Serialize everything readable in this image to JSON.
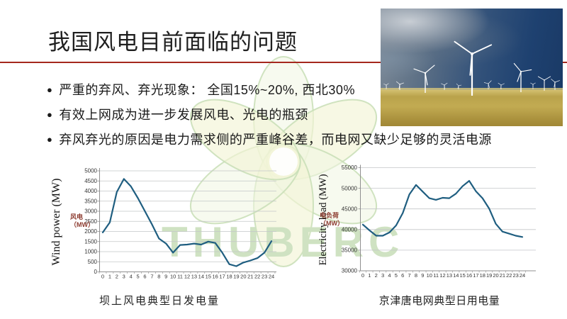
{
  "slide": {
    "title": "我国风电目前面临的问题",
    "accent_line_color": "#a5281e",
    "watermark_text": "THUBERC",
    "watermark_color": "#cfe2c2",
    "bullets": [
      "严重的弃风、弃光现象： 全国15%~20%, 西北30%",
      "有效上网成为进一步发展风电、光电的瓶颈",
      "弃风弃光的原因是电力需求侧的严重峰谷差，而电网又缺少足够的灵活电源"
    ]
  },
  "photo": {
    "sky_color": "#2a4a70",
    "field_color": "#b59d45",
    "turbine_color": "#ffffff"
  },
  "chart_data": [
    {
      "type": "line",
      "title": "坝上风电典型日发电量",
      "ylabel": "Wind power (MW)",
      "series_label": "风电（MW）",
      "line_color": "#1f5e80",
      "grid": true,
      "legend_position": "left-center",
      "ylim": [
        0,
        5000
      ],
      "ytick_step": 500,
      "x": [
        0,
        1,
        2,
        3,
        4,
        5,
        6,
        7,
        8,
        9,
        10,
        11,
        12,
        13,
        14,
        15,
        16,
        17,
        18,
        19,
        20,
        21,
        22,
        23,
        24
      ],
      "values": [
        1950,
        2450,
        3950,
        4600,
        4230,
        3650,
        3000,
        2350,
        1650,
        1400,
        950,
        1330,
        1350,
        1400,
        1350,
        1500,
        1430,
        950,
        380,
        280,
        460,
        560,
        680,
        950,
        1520
      ]
    },
    {
      "type": "line",
      "title": "京津唐电网典型日用电量",
      "ylabel": "Electricity load (MW)",
      "series_label": "电负荷（MW）",
      "line_color": "#1f5e80",
      "grid": true,
      "legend_position": "left-center",
      "ylim": [
        30000,
        55000
      ],
      "ytick_step": 5000,
      "x": [
        0,
        1,
        2,
        3,
        4,
        5,
        6,
        7,
        8,
        9,
        10,
        11,
        12,
        13,
        14,
        15,
        16,
        17,
        18,
        19,
        20,
        21,
        22,
        23,
        24
      ],
      "values": [
        41200,
        39800,
        38500,
        38500,
        39300,
        41000,
        44000,
        48500,
        50800,
        49200,
        47600,
        47200,
        47700,
        47600,
        48700,
        50500,
        51800,
        49300,
        47600,
        45100,
        41400,
        39500,
        39000,
        38500,
        38200
      ]
    }
  ]
}
